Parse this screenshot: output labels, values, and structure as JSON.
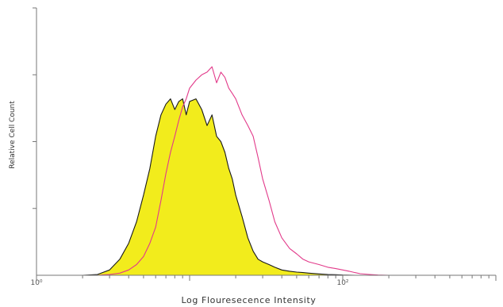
{
  "chart_data": {
    "type": "area",
    "xlabel": "Log Flouresecence Intensity",
    "ylabel": "Relative Cell Count",
    "xscale": "log",
    "xlim": [
      1,
      1000
    ],
    "ylim": [
      0,
      100
    ],
    "xticks": [
      {
        "value": 1,
        "label": "10⁰"
      },
      {
        "value": 100,
        "label": "10²"
      }
    ],
    "grid": false,
    "legend": "none",
    "series": [
      {
        "color": "#e23a8a",
        "fill": "none",
        "x": [
          1,
          1.5,
          2,
          2.5,
          3,
          3.5,
          4,
          4.5,
          5,
          5.5,
          6,
          6.5,
          7,
          7.5,
          8,
          8.5,
          9,
          9.5,
          10,
          11,
          12,
          13,
          14,
          15,
          16,
          17,
          18,
          19,
          20,
          22,
          24,
          26,
          28,
          30,
          33,
          36,
          40,
          45,
          50,
          55,
          60,
          70,
          80,
          90,
          100,
          110,
          120,
          130,
          150,
          170,
          200
        ],
        "y": [
          0,
          0,
          0,
          0,
          0.3,
          0.8,
          2,
          4,
          7,
          12,
          18,
          28,
          38,
          46,
          52,
          58,
          63,
          66,
          70,
          73,
          75,
          76,
          78,
          72,
          76,
          74,
          70,
          68,
          66,
          60,
          56,
          52,
          44,
          36,
          28,
          20,
          14,
          10,
          8,
          6,
          5,
          4,
          3,
          2.5,
          2,
          1.5,
          1,
          0.6,
          0.3,
          0.1,
          0
        ]
      },
      {
        "color": "#1a1a1a",
        "fill": "#f2ec1c",
        "x": [
          1,
          1.5,
          2,
          2.5,
          3,
          3.5,
          4,
          4.5,
          5,
          5.5,
          6,
          6.5,
          7,
          7.5,
          8,
          8.5,
          9,
          9.5,
          10,
          11,
          12,
          13,
          14,
          15,
          16,
          17,
          18,
          19,
          20,
          22,
          24,
          26,
          28,
          30,
          33,
          36,
          40,
          45,
          50,
          55,
          60,
          70,
          80,
          90,
          100,
          120
        ],
        "y": [
          0,
          0,
          0,
          0.3,
          2,
          6,
          12,
          20,
          30,
          40,
          52,
          60,
          64,
          66,
          62,
          65,
          66,
          60,
          65,
          66,
          62,
          56,
          60,
          52,
          50,
          46,
          40,
          36,
          30,
          22,
          14,
          9,
          6,
          5,
          4,
          3,
          2,
          1.5,
          1.2,
          1,
          0.8,
          0.5,
          0.3,
          0.2,
          0.1,
          0
        ]
      }
    ]
  }
}
